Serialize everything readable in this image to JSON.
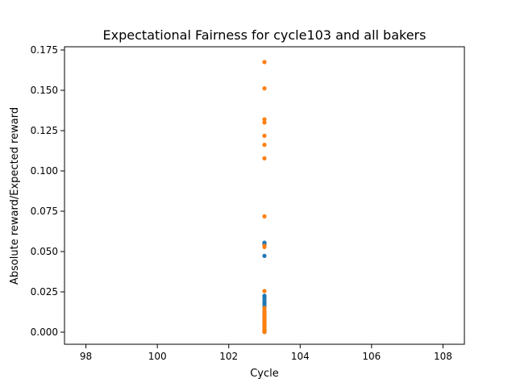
{
  "chart_data": {
    "type": "scatter",
    "title": "Expectational Fairness for cycle103 and all bakers",
    "xlabel": "Cycle",
    "ylabel": "Absolute reward/Expected reward",
    "xlim": [
      97.4,
      108.6
    ],
    "ylim": [
      -0.0075,
      0.177
    ],
    "xticks": [
      98,
      100,
      102,
      104,
      106,
      108
    ],
    "yticks": [
      0.0,
      0.025,
      0.05,
      0.075,
      0.1,
      0.125,
      0.15,
      0.175
    ],
    "xtick_labels": [
      "98",
      "100",
      "102",
      "104",
      "106",
      "108"
    ],
    "ytick_labels": [
      "0.000",
      "0.025",
      "0.050",
      "0.075",
      "0.100",
      "0.125",
      "0.150",
      "0.175"
    ],
    "grid": false,
    "legend": "none",
    "series": [
      {
        "color": "#1f77b4",
        "x": [
          103,
          103,
          103,
          103,
          103,
          103,
          103,
          103,
          103,
          103,
          103,
          103,
          103,
          103,
          103,
          103,
          103,
          103,
          103,
          103,
          103,
          103,
          103,
          103,
          103,
          103,
          103,
          103
        ],
        "y": [
          0.0555,
          0.0548,
          0.054,
          0.0473,
          0.0226,
          0.0215,
          0.0205,
          0.019,
          0.0178,
          0.0165,
          0.015,
          0.0132,
          0.0118,
          0.0105,
          0.0092,
          0.008,
          0.0068,
          0.0058,
          0.0048,
          0.004,
          0.0032,
          0.0025,
          0.0019,
          0.0013,
          0.0009,
          0.0005,
          0.0003,
          0.0001
        ]
      },
      {
        "color": "#ff7f0e",
        "x": [
          103,
          103,
          103,
          103,
          103,
          103,
          103,
          103,
          103,
          103,
          103,
          103,
          103,
          103,
          103,
          103,
          103,
          103,
          103,
          103,
          103,
          103,
          103,
          103,
          103,
          103,
          103,
          103,
          103,
          103
        ],
        "y": [
          0.1675,
          0.1512,
          0.132,
          0.13,
          0.1218,
          0.1162,
          0.1078,
          0.0718,
          0.0535,
          0.0528,
          0.0255,
          0.015,
          0.0135,
          0.012,
          0.0108,
          0.0095,
          0.0082,
          0.007,
          0.006,
          0.0052,
          0.0045,
          0.0038,
          0.003,
          0.0024,
          0.0018,
          0.0012,
          0.0008,
          0.0005,
          0.0003,
          0.0001
        ]
      }
    ]
  }
}
